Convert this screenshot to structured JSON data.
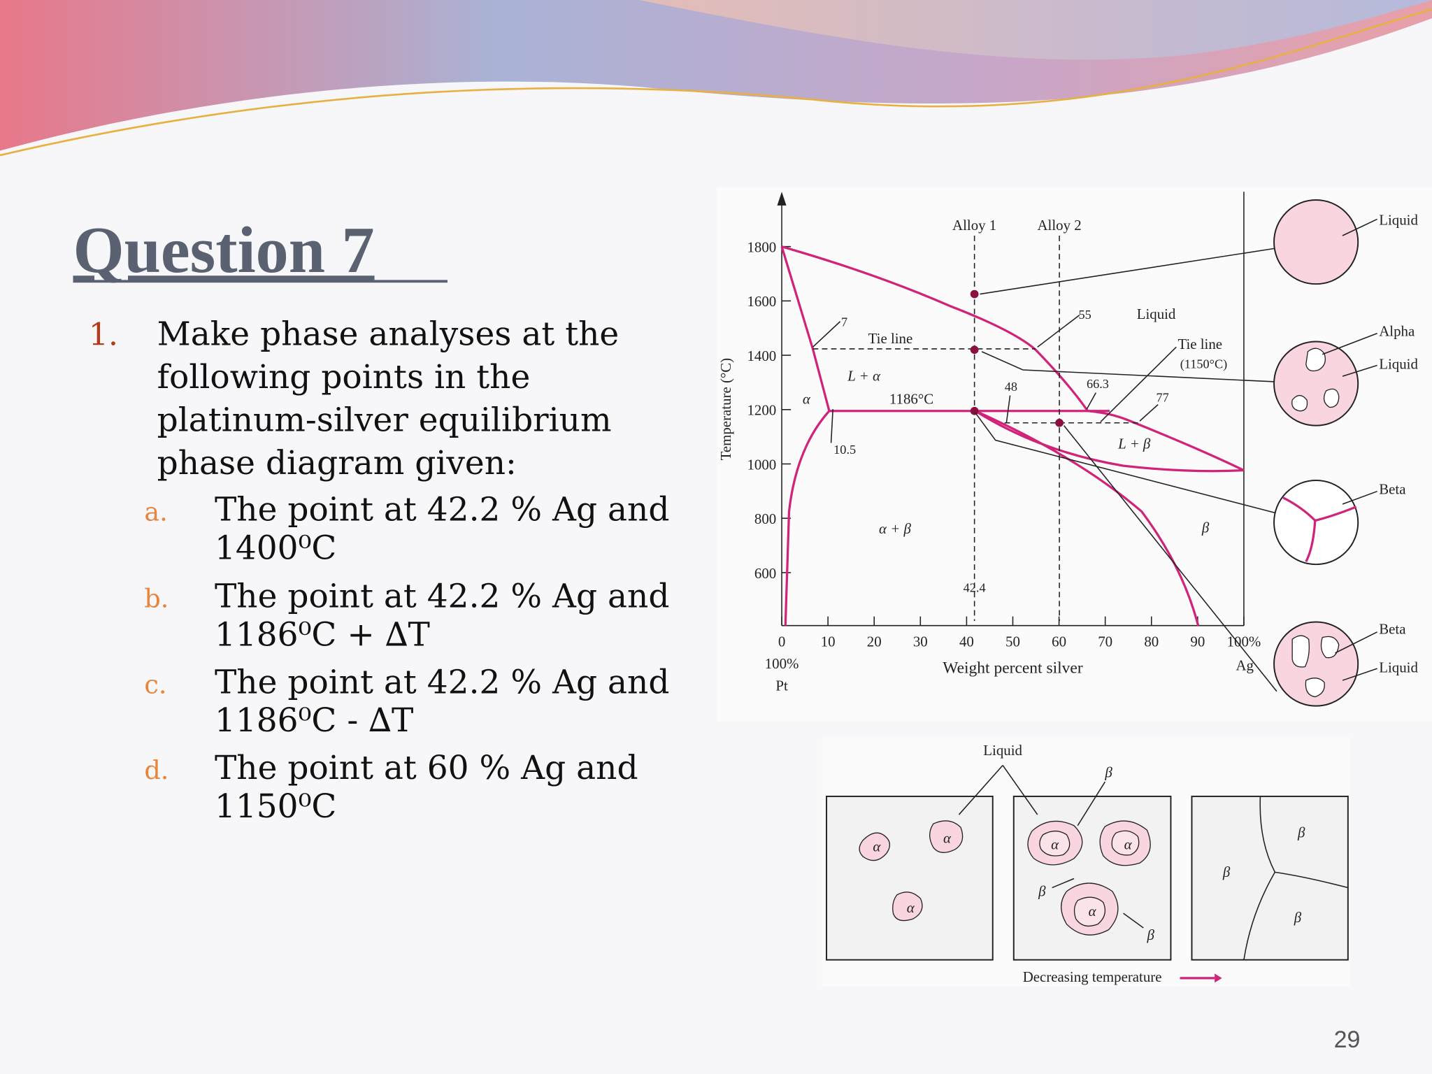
{
  "slide": {
    "title": "Question 7",
    "page_number": "29"
  },
  "question": {
    "number": "1.",
    "lines": [
      "Make phase analyses at the",
      "following points in the",
      "platinum-silver equilibrium",
      "phase diagram given:"
    ],
    "items": [
      {
        "marker": "a.",
        "lines": [
          "The point at 42.2 % Ag and",
          "1400⁰C"
        ]
      },
      {
        "marker": "b.",
        "lines": [
          "The point at 42.2 % Ag and",
          "1186⁰C + ∆T"
        ]
      },
      {
        "marker": "c.",
        "lines": [
          "The point at 42.2 % Ag and",
          "1186⁰C - ∆T"
        ]
      },
      {
        "marker": "d.",
        "lines": [
          "The point at 60 % Ag and",
          "1150⁰C"
        ]
      }
    ]
  },
  "diagram": {
    "y_axis_title": "Temperature (°C)",
    "y_tick_labels": [
      "1800",
      "1600",
      "1400",
      "1200",
      "1000",
      "800",
      "600"
    ],
    "x_tick_labels": [
      "0",
      "10",
      "20",
      "30",
      "40",
      "50",
      "60",
      "70",
      "80",
      "90",
      "100%"
    ],
    "x_axis_title": "Weight percent silver",
    "left_end": [
      "100%",
      "Pt"
    ],
    "right_end": "Ag",
    "alloy_1": "Alloy 1",
    "alloy_2": "Alloy 2",
    "liquid": "Liquid",
    "tie_line": "Tie line",
    "tie_line_2": "Tie line",
    "tie_line_2_temp": "(1150°C)",
    "l_alpha": "L + α",
    "alpha": "α",
    "peritectic_temp": "1186°C",
    "l_beta": "L + β",
    "alpha_beta": "α + β",
    "beta": "β",
    "comp_7": "7",
    "comp_10_5": "10.5",
    "comp_48": "48",
    "comp_55": "55",
    "comp_66_3": "66.3",
    "comp_77": "77",
    "comp_42_4": "42.4",
    "micro_labels": [
      "Liquid",
      "Alpha",
      "Liquid",
      "Beta",
      "Beta",
      "Liquid"
    ]
  },
  "sequence": {
    "liquid": "Liquid",
    "beta_top": "β",
    "panel_1_alpha": [
      "α",
      "α",
      "α"
    ],
    "panel_2_alpha": [
      "α",
      "α",
      "α"
    ],
    "panel_2_beta": [
      "β",
      "β"
    ],
    "panel_3_beta": [
      "β",
      "β",
      "β"
    ],
    "caption": "Decreasing temperature"
  }
}
